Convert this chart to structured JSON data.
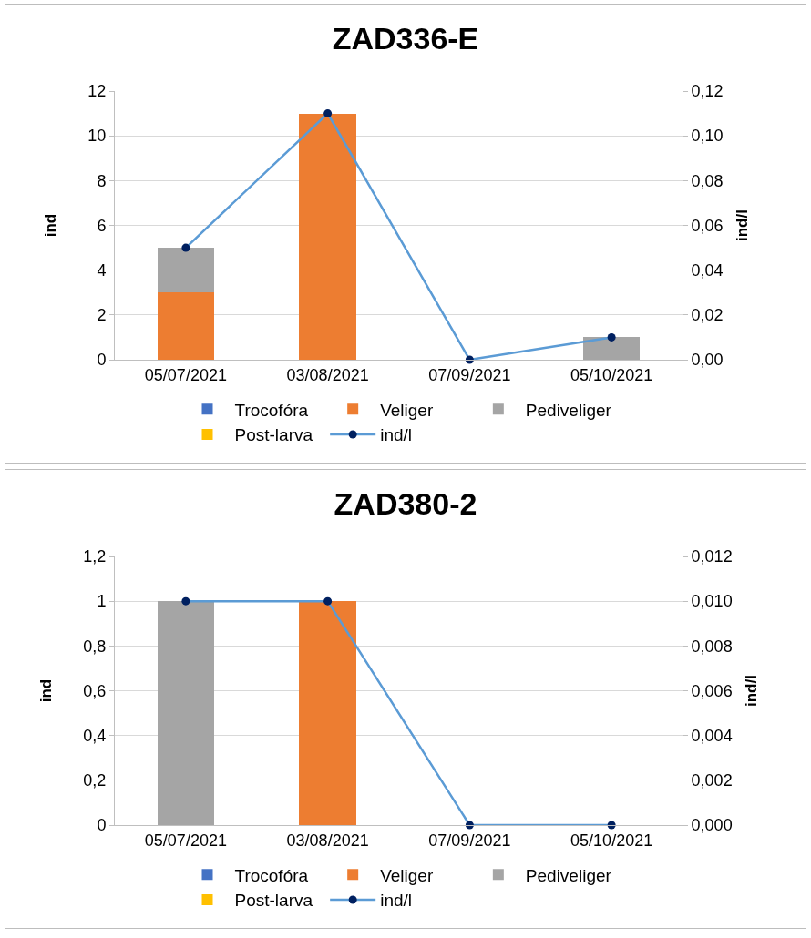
{
  "chart_data": [
    {
      "type": "bar",
      "title": "ZAD336-E",
      "ylabel": "ind",
      "y2label": "ind/l",
      "categories": [
        "05/07/2021",
        "03/08/2021",
        "07/09/2021",
        "05/10/2021"
      ],
      "stacked": true,
      "grid": "y",
      "legend": "bottom",
      "marker": "circle",
      "line_style": "solid",
      "ylim": [
        0,
        12
      ],
      "yticks": [
        0,
        2,
        4,
        6,
        8,
        10,
        12
      ],
      "y2lim": [
        0,
        0.12
      ],
      "y2ticks": [
        {
          "value": 0,
          "label": "0,00"
        },
        {
          "value": 0.02,
          "label": "0,02"
        },
        {
          "value": 0.04,
          "label": "0,04"
        },
        {
          "value": 0.06,
          "label": "0,06"
        },
        {
          "value": 0.08,
          "label": "0,08"
        },
        {
          "value": 0.1,
          "label": "0,10"
        },
        {
          "value": 0.12,
          "label": "0,12"
        }
      ],
      "series": [
        {
          "name": "Trocofóra",
          "color": "#4472c4",
          "values": [
            0,
            0,
            0,
            0
          ]
        },
        {
          "name": "Veliger",
          "color": "#ed7d31",
          "values": [
            3,
            11,
            0,
            0
          ]
        },
        {
          "name": "Pediveliger",
          "color": "#a5a5a5",
          "values": [
            2,
            0,
            0,
            1
          ]
        },
        {
          "name": "Post-larva",
          "color": "#ffc000",
          "values": [
            0,
            0,
            0,
            0
          ]
        },
        {
          "name": "ind/l",
          "type": "line",
          "axis": "y2",
          "color": "#5b9bd5",
          "colors": [
            "#002060",
            "#002060",
            "#002060",
            "#002060"
          ],
          "values": [
            0.05,
            0.11,
            0,
            0.01
          ]
        }
      ]
    },
    {
      "type": "bar",
      "title": "ZAD380-2",
      "ylabel": "ind",
      "y2label": "ind/l",
      "categories": [
        "05/07/2021",
        "03/08/2021",
        "07/09/2021",
        "05/10/2021"
      ],
      "stacked": true,
      "grid": "y",
      "legend": "bottom",
      "marker": "circle",
      "line_style": "solid",
      "ylim": [
        0,
        1.2
      ],
      "yticks": [
        0,
        {
          "value": 0.2,
          "label": "0,2"
        },
        {
          "value": 0.4,
          "label": "0,4"
        },
        {
          "value": 0.6,
          "label": "0,6"
        },
        {
          "value": 0.8,
          "label": "0,8"
        },
        1,
        {
          "value": 1.2,
          "label": "1,2"
        }
      ],
      "y2lim": [
        0,
        0.012
      ],
      "y2ticks": [
        {
          "value": 0,
          "label": "0,000"
        },
        {
          "value": 0.002,
          "label": "0,002"
        },
        {
          "value": 0.004,
          "label": "0,004"
        },
        {
          "value": 0.006,
          "label": "0,006"
        },
        {
          "value": 0.008,
          "label": "0,008"
        },
        {
          "value": 0.01,
          "label": "0,010"
        },
        {
          "value": 0.012,
          "label": "0,012"
        }
      ],
      "series": [
        {
          "name": "Trocofóra",
          "color": "#4472c4",
          "values": [
            0,
            0,
            0,
            0
          ]
        },
        {
          "name": "Veliger",
          "color": "#ed7d31",
          "values": [
            0,
            1,
            0,
            0
          ]
        },
        {
          "name": "Pediveliger",
          "color": "#a5a5a5",
          "values": [
            1,
            0,
            0,
            0
          ]
        },
        {
          "name": "Post-larva",
          "color": "#ffc000",
          "values": [
            0,
            0,
            0,
            0
          ]
        },
        {
          "name": "ind/l",
          "type": "line",
          "axis": "y2",
          "color": "#5b9bd5",
          "colors": [
            "#002060",
            "#002060",
            "#002060",
            "#002060"
          ],
          "values": [
            0.01,
            0.01,
            0,
            0
          ]
        }
      ]
    }
  ]
}
